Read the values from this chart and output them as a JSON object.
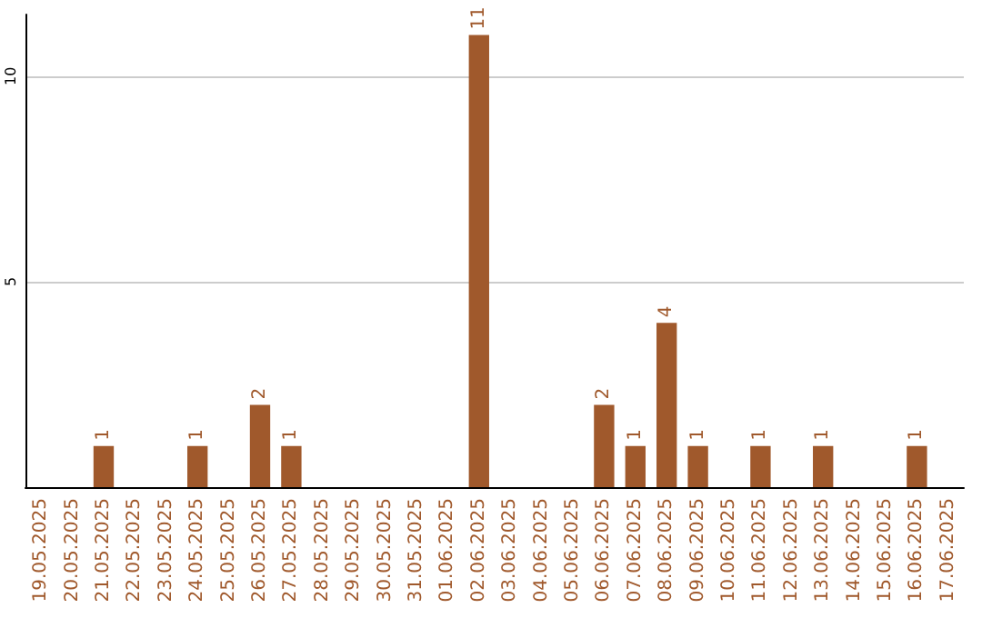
{
  "chart_data": {
    "type": "bar",
    "categories": [
      "19.05.2025",
      "20.05.2025",
      "21.05.2025",
      "22.05.2025",
      "23.05.2025",
      "24.05.2025",
      "25.05.2025",
      "26.05.2025",
      "27.05.2025",
      "28.05.2025",
      "29.05.2025",
      "30.05.2025",
      "31.05.2025",
      "01.06.2025",
      "02.06.2025",
      "03.06.2025",
      "04.06.2025",
      "05.06.2025",
      "06.06.2025",
      "07.06.2025",
      "08.06.2025",
      "09.06.2025",
      "10.06.2025",
      "11.06.2025",
      "12.06.2025",
      "13.06.2025",
      "14.06.2025",
      "15.06.2025",
      "16.06.2025",
      "17.06.2025"
    ],
    "values": [
      0,
      0,
      1,
      0,
      0,
      1,
      0,
      2,
      1,
      0,
      0,
      0,
      0,
      0,
      11,
      0,
      0,
      0,
      2,
      1,
      4,
      1,
      0,
      1,
      0,
      1,
      0,
      0,
      1,
      0
    ],
    "value_labels": [
      null,
      null,
      "1",
      null,
      null,
      "1",
      null,
      "2",
      "1",
      null,
      null,
      null,
      null,
      null,
      "11",
      null,
      null,
      null,
      "2",
      "1",
      "4",
      "1",
      null,
      "1",
      null,
      "1",
      null,
      null,
      "1",
      null
    ],
    "color": "#a0592c",
    "ylim": [
      0,
      11.5
    ],
    "yticks": [
      5,
      10
    ],
    "grid": "y"
  }
}
